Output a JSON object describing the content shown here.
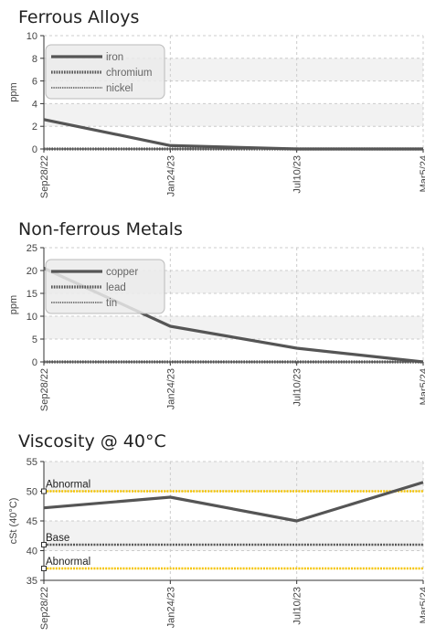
{
  "chart_data": [
    {
      "type": "line",
      "title": "Ferrous Alloys",
      "ylabel": "ppm",
      "xlabel": "",
      "categories": [
        "Sep28/22",
        "Jan24/23",
        "Jul10/23",
        "Mar5/24"
      ],
      "ylim": [
        0,
        10
      ],
      "yticks": [
        0,
        2,
        4,
        6,
        8,
        10
      ],
      "grid": true,
      "legend_position": "top-left",
      "series": [
        {
          "name": "iron",
          "values": [
            2.6,
            0.3,
            0,
            0
          ]
        },
        {
          "name": "chromium",
          "values": [
            0,
            0,
            0,
            0
          ]
        },
        {
          "name": "nickel",
          "values": [
            0,
            0,
            0,
            0
          ]
        }
      ]
    },
    {
      "type": "line",
      "title": "Non-ferrous Metals",
      "ylabel": "ppm",
      "xlabel": "",
      "categories": [
        "Sep28/22",
        "Jan24/23",
        "Jul10/23",
        "Mar5/24"
      ],
      "ylim": [
        0,
        25
      ],
      "yticks": [
        0,
        5,
        10,
        15,
        20,
        25
      ],
      "grid": true,
      "legend_position": "top-left",
      "series": [
        {
          "name": "copper",
          "values": [
            20.5,
            7.8,
            3,
            0
          ]
        },
        {
          "name": "lead",
          "values": [
            0,
            0,
            0,
            0
          ]
        },
        {
          "name": "tin",
          "values": [
            0,
            0,
            0,
            0
          ]
        }
      ]
    },
    {
      "type": "line",
      "title": "Viscosity @ 40°C",
      "ylabel": "cSt (40°C)",
      "xlabel": "",
      "categories": [
        "Sep28/22",
        "Jan24/23",
        "Jul10/23",
        "Mar5/24"
      ],
      "ylim": [
        35,
        55
      ],
      "yticks": [
        35,
        40,
        45,
        50,
        55
      ],
      "grid": true,
      "series": [
        {
          "values": [
            47.2,
            49,
            45,
            51.5
          ]
        }
      ],
      "reference_lines": [
        {
          "label": "Abnormal",
          "value": 50,
          "color": "#f5c400"
        },
        {
          "label": "Base",
          "value": 41,
          "color": "#555555"
        },
        {
          "label": "Abnormal",
          "value": 37,
          "color": "#f5c400"
        }
      ]
    }
  ],
  "colors": {
    "series_line": "#555555",
    "grid": "#cccccc",
    "band": "#f2f2f2",
    "limit": "#f5c400"
  }
}
